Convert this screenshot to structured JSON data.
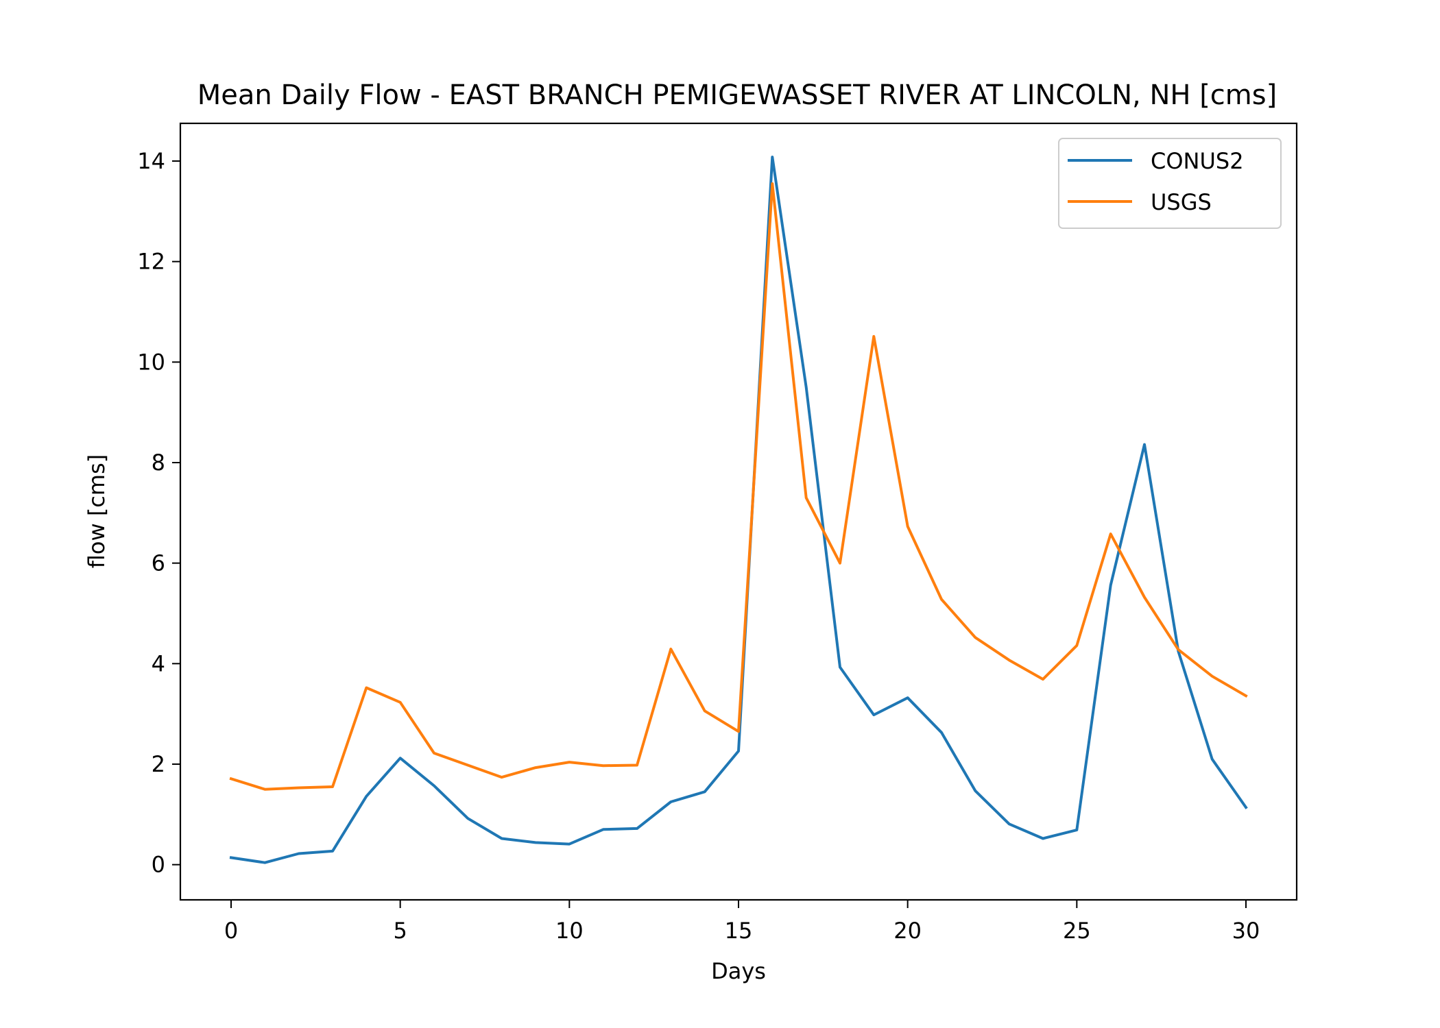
{
  "chart_data": {
    "type": "line",
    "title": "Mean Daily Flow - EAST BRANCH PEMIGEWASSET RIVER AT LINCOLN, NH [cms]",
    "xlabel": "Days",
    "ylabel": "flow [cms]",
    "xlim": [
      -1.5,
      31.5
    ],
    "ylim": [
      -0.7,
      14.75
    ],
    "xticks": [
      0,
      5,
      10,
      15,
      20,
      25,
      30
    ],
    "xtick_labels": [
      "0",
      "5",
      "10",
      "15",
      "20",
      "25",
      "30"
    ],
    "yticks": [
      0,
      2,
      4,
      6,
      8,
      10,
      12,
      14
    ],
    "ytick_labels": [
      "0",
      "2",
      "4",
      "6",
      "8",
      "10",
      "12",
      "14"
    ],
    "grid": false,
    "legend_position": "upper right",
    "x": [
      0,
      1,
      2,
      3,
      4,
      5,
      6,
      7,
      8,
      9,
      10,
      11,
      12,
      13,
      14,
      15,
      16,
      17,
      18,
      19,
      20,
      21,
      22,
      23,
      24,
      25,
      26,
      27,
      28,
      29,
      30
    ],
    "series": [
      {
        "name": "CONUS2",
        "color": "#1f77b4",
        "values": [
          0.14,
          0.04,
          0.22,
          0.27,
          1.36,
          2.12,
          1.57,
          0.92,
          0.52,
          0.44,
          0.41,
          0.7,
          0.72,
          1.25,
          1.45,
          2.26,
          14.08,
          9.5,
          3.93,
          2.98,
          3.32,
          2.63,
          1.47,
          0.81,
          0.52,
          0.69,
          5.56,
          8.36,
          4.25,
          2.1,
          1.14
        ]
      },
      {
        "name": "USGS",
        "color": "#ff7f0e",
        "values": [
          1.71,
          1.5,
          1.53,
          1.55,
          3.52,
          3.23,
          2.22,
          1.98,
          1.74,
          1.93,
          2.04,
          1.97,
          1.98,
          4.29,
          3.06,
          2.65,
          13.55,
          7.3,
          6.0,
          10.51,
          6.73,
          5.28,
          4.52,
          4.07,
          3.69,
          4.36,
          6.58,
          5.32,
          4.28,
          3.75,
          3.36
        ]
      }
    ]
  }
}
